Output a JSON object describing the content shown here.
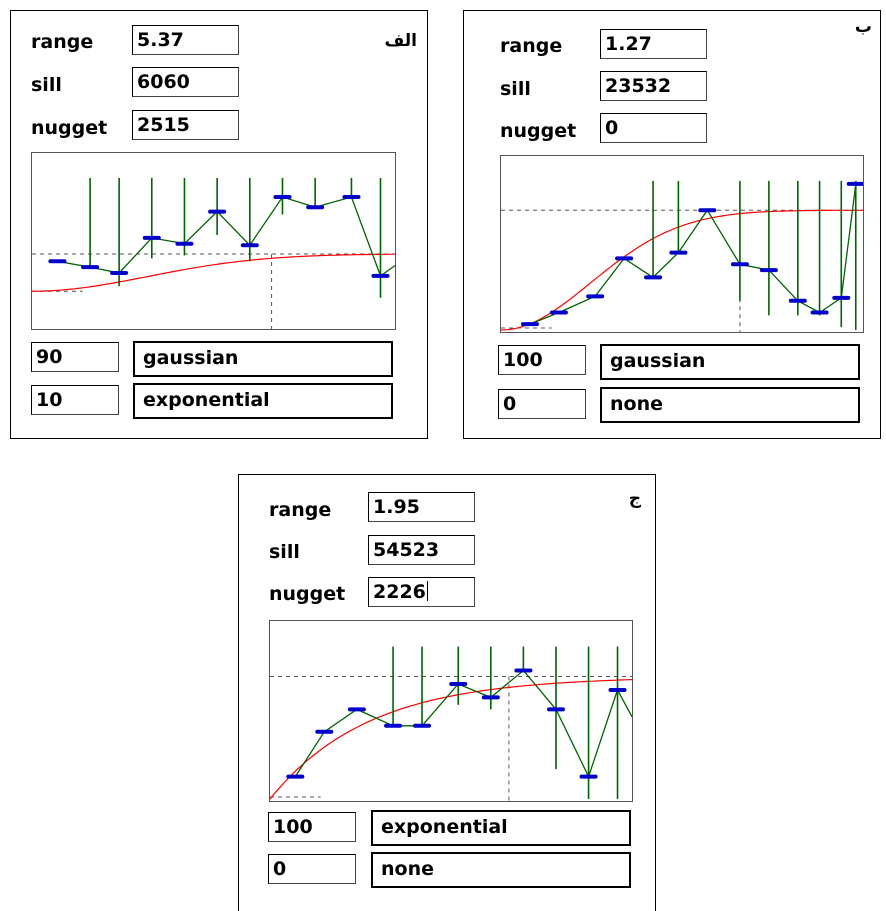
{
  "colors": {
    "model_curve": "#ff0000",
    "experimental_line": "#006400",
    "variance_bar": "#006400",
    "semivariance_marker": "#0000cc",
    "reference_dash": "#555555"
  },
  "panels": [
    {
      "tag": "الف",
      "range_label": "range",
      "range_value": "5.37",
      "sill_label": "sill",
      "sill_value": "6060",
      "nugget_label": "nugget",
      "nugget_value": "2515",
      "nugget_has_caret": false,
      "model_1_weight": "90",
      "model_1_type": "gaussian",
      "model_2_weight": "10",
      "model_2_type": "exponential",
      "chart_data": {
        "type": "line",
        "model": "gaussian",
        "sill_fraction": 0.5,
        "nugget_fraction": 0.49,
        "range_fraction": 0.66,
        "curve_shape": 0.45,
        "experimental_points": [
          {
            "x": 0.07,
            "y": 0.45,
            "bar_top": 0.45,
            "bar_bottom": 0.45
          },
          {
            "x": 0.16,
            "y": 0.41,
            "bar_top": 1.0,
            "bar_bottom": 0.41
          },
          {
            "x": 0.24,
            "y": 0.37,
            "bar_top": 1.0,
            "bar_bottom": 0.28
          },
          {
            "x": 0.33,
            "y": 0.61,
            "bar_top": 1.0,
            "bar_bottom": 0.47
          },
          {
            "x": 0.42,
            "y": 0.57,
            "bar_top": 1.0,
            "bar_bottom": 0.49
          },
          {
            "x": 0.51,
            "y": 0.79,
            "bar_top": 1.0,
            "bar_bottom": 0.63
          },
          {
            "x": 0.6,
            "y": 0.56,
            "bar_top": 1.0,
            "bar_bottom": 0.45
          },
          {
            "x": 0.69,
            "y": 0.89,
            "bar_top": 1.0,
            "bar_bottom": 0.77
          },
          {
            "x": 0.78,
            "y": 0.82,
            "bar_top": 1.0,
            "bar_bottom": 0.82
          },
          {
            "x": 0.88,
            "y": 0.89,
            "bar_top": 1.0,
            "bar_bottom": 0.89
          },
          {
            "x": 0.96,
            "y": 0.35,
            "bar_top": 1.0,
            "bar_bottom": 0.2
          },
          {
            "x": 1.0,
            "y": 0.42,
            "bar_top": 0.42,
            "bar_bottom": 0.42
          }
        ]
      }
    },
    {
      "tag": "ب",
      "range_label": "range",
      "range_value": "1.27",
      "sill_label": "sill",
      "sill_value": "23532",
      "nugget_label": "nugget",
      "nugget_value": "0",
      "nugget_has_caret": false,
      "model_1_weight": "100",
      "model_1_type": "gaussian",
      "model_2_weight": "0",
      "model_2_type": "none",
      "chart_data": {
        "type": "line",
        "model": "gaussian",
        "sill_fraction": 0.82,
        "nugget_fraction": 0.0,
        "range_fraction": 0.66,
        "curve_shape": 0.35,
        "experimental_points": [
          {
            "x": 0.08,
            "y": 0.04,
            "bar_top": 0.04,
            "bar_bottom": 0.04
          },
          {
            "x": 0.16,
            "y": 0.12,
            "bar_top": 0.12,
            "bar_bottom": 0.12
          },
          {
            "x": 0.26,
            "y": 0.23,
            "bar_top": 0.23,
            "bar_bottom": 0.23
          },
          {
            "x": 0.34,
            "y": 0.49,
            "bar_top": 0.49,
            "bar_bottom": 0.49
          },
          {
            "x": 0.42,
            "y": 0.36,
            "bar_top": 1.0,
            "bar_bottom": 0.36
          },
          {
            "x": 0.49,
            "y": 0.53,
            "bar_top": 1.0,
            "bar_bottom": 0.53
          },
          {
            "x": 0.57,
            "y": 0.82,
            "bar_top": 0.82,
            "bar_bottom": 0.82
          },
          {
            "x": 0.66,
            "y": 0.45,
            "bar_top": 1.0,
            "bar_bottom": 0.2
          },
          {
            "x": 0.74,
            "y": 0.41,
            "bar_top": 1.0,
            "bar_bottom": 0.1
          },
          {
            "x": 0.82,
            "y": 0.2,
            "bar_top": 1.0,
            "bar_bottom": 0.1
          },
          {
            "x": 0.88,
            "y": 0.12,
            "bar_top": 1.0,
            "bar_bottom": 0.1
          },
          {
            "x": 0.94,
            "y": 0.22,
            "bar_top": 1.0,
            "bar_bottom": 0.02
          },
          {
            "x": 0.98,
            "y": 1.0,
            "bar_top": 1.0,
            "bar_bottom": 0.0
          }
        ]
      }
    },
    {
      "tag": "ج",
      "range_label": "range",
      "range_value": "1.95",
      "sill_label": "sill",
      "sill_value": "54523",
      "nugget_label": "nugget",
      "nugget_value": "2226",
      "nugget_has_caret": true,
      "model_1_weight": "100",
      "model_1_type": "exponential",
      "model_2_weight": "0",
      "model_2_type": "none",
      "chart_data": {
        "type": "line",
        "model": "exponential",
        "sill_fraction": 0.82,
        "nugget_fraction": 0.0,
        "range_fraction": 0.66,
        "curve_shape": 0.3,
        "experimental_points": [
          {
            "x": 0.07,
            "y": 0.15,
            "bar_top": 0.15,
            "bar_bottom": 0.15
          },
          {
            "x": 0.15,
            "y": 0.45,
            "bar_top": 0.45,
            "bar_bottom": 0.45
          },
          {
            "x": 0.24,
            "y": 0.6,
            "bar_top": 0.6,
            "bar_bottom": 0.6
          },
          {
            "x": 0.34,
            "y": 0.49,
            "bar_top": 1.0,
            "bar_bottom": 0.49
          },
          {
            "x": 0.42,
            "y": 0.49,
            "bar_top": 1.0,
            "bar_bottom": 0.49
          },
          {
            "x": 0.52,
            "y": 0.77,
            "bar_top": 1.0,
            "bar_bottom": 0.63
          },
          {
            "x": 0.61,
            "y": 0.68,
            "bar_top": 1.0,
            "bar_bottom": 0.6
          },
          {
            "x": 0.7,
            "y": 0.86,
            "bar_top": 1.0,
            "bar_bottom": 0.86
          },
          {
            "x": 0.79,
            "y": 0.6,
            "bar_top": 1.0,
            "bar_bottom": 0.2
          },
          {
            "x": 0.88,
            "y": 0.15,
            "bar_top": 1.0,
            "bar_bottom": 0.0
          },
          {
            "x": 0.96,
            "y": 0.73,
            "bar_top": 1.0,
            "bar_bottom": 0.0
          },
          {
            "x": 1.0,
            "y": 0.55,
            "bar_top": 0.55,
            "bar_bottom": 0.55
          }
        ]
      }
    }
  ]
}
